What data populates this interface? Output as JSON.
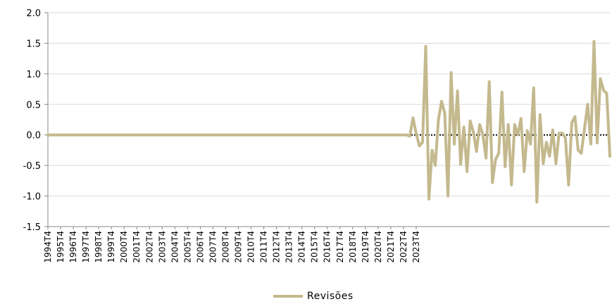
{
  "chart_data": {
    "type": "line",
    "title": "",
    "xlabel": "",
    "ylabel": "",
    "ylim": [
      -1.5,
      2.0
    ],
    "yticks": [
      "2.0",
      "1.5",
      "1.0",
      "0.5",
      "0.0",
      "-0.5",
      "-1.0",
      "-1.5"
    ],
    "ytick_values": [
      2.0,
      1.5,
      1.0,
      0.5,
      0.0,
      -0.5,
      -1.0,
      -1.5
    ],
    "x_ticks": [
      "1994T4",
      "1995T4",
      "1996T4",
      "1997T4",
      "1998T4",
      "1999T4",
      "2000T4",
      "2001T4",
      "2002T4",
      "2003T4",
      "2004T4",
      "2005T4",
      "2006T4",
      "2007T4",
      "2008T4",
      "2009T4",
      "2010T4",
      "2011T4",
      "2012T4",
      "2013T4",
      "2014T4",
      "2015T4",
      "2016T4",
      "2017T4",
      "2018T4",
      "2019T4",
      "2020T4",
      "2021T4",
      "2022T4",
      "2023T4"
    ],
    "x_start": "1994T4",
    "grid": true,
    "zero_line_style": "dotted",
    "legend_position": "bottom-center",
    "series": [
      {
        "name": "Revisões",
        "color": "#c4b98e",
        "values": [
          0,
          0,
          0,
          0,
          0,
          0,
          0,
          0,
          0,
          0,
          0,
          0,
          0,
          0,
          0,
          0,
          0,
          0,
          0,
          0,
          0,
          0,
          0,
          0,
          0,
          0,
          0,
          0,
          0,
          0,
          0,
          0,
          0,
          0,
          0,
          0,
          0,
          0,
          0,
          0,
          0,
          0,
          0,
          0,
          0,
          0,
          0,
          0,
          0,
          0,
          0,
          0,
          0,
          0,
          0,
          0,
          0,
          0,
          0,
          0,
          0,
          0,
          0,
          0,
          0,
          0,
          0,
          0,
          0,
          0,
          0,
          0,
          0,
          0,
          0,
          0,
          0,
          0,
          0,
          0,
          0,
          0,
          0,
          0,
          0,
          0,
          0,
          0,
          0,
          0,
          0,
          0,
          0,
          0,
          0,
          0,
          0,
          0,
          0,
          0,
          0,
          0,
          0,
          0,
          0,
          0,
          0,
          0,
          0,
          0,
          0,
          0,
          0,
          0,
          -0.02,
          0.28,
          0.02,
          -0.18,
          -0.12,
          1.45,
          -1.05,
          -0.25,
          -0.5,
          0.25,
          0.55,
          0.35,
          -1.0,
          1.02,
          -0.15,
          0.72,
          -0.48,
          0.13,
          -0.6,
          0.23,
          0.05,
          -0.27,
          0.17,
          0.0,
          -0.38,
          0.87,
          -0.78,
          -0.4,
          -0.3,
          0.7,
          -0.52,
          0.17,
          -0.82,
          0.17,
          0.0,
          0.27,
          -0.6,
          0.07,
          -0.15,
          0.77,
          -1.1,
          0.33,
          -0.47,
          -0.12,
          -0.35,
          0.08,
          -0.47,
          0.03,
          0.03,
          -0.05,
          -0.82,
          0.2,
          0.3,
          -0.25,
          -0.3,
          0.1,
          0.5,
          -0.15,
          1.53,
          -0.13,
          0.92,
          0.73,
          0.68,
          -0.35
        ]
      }
    ]
  }
}
